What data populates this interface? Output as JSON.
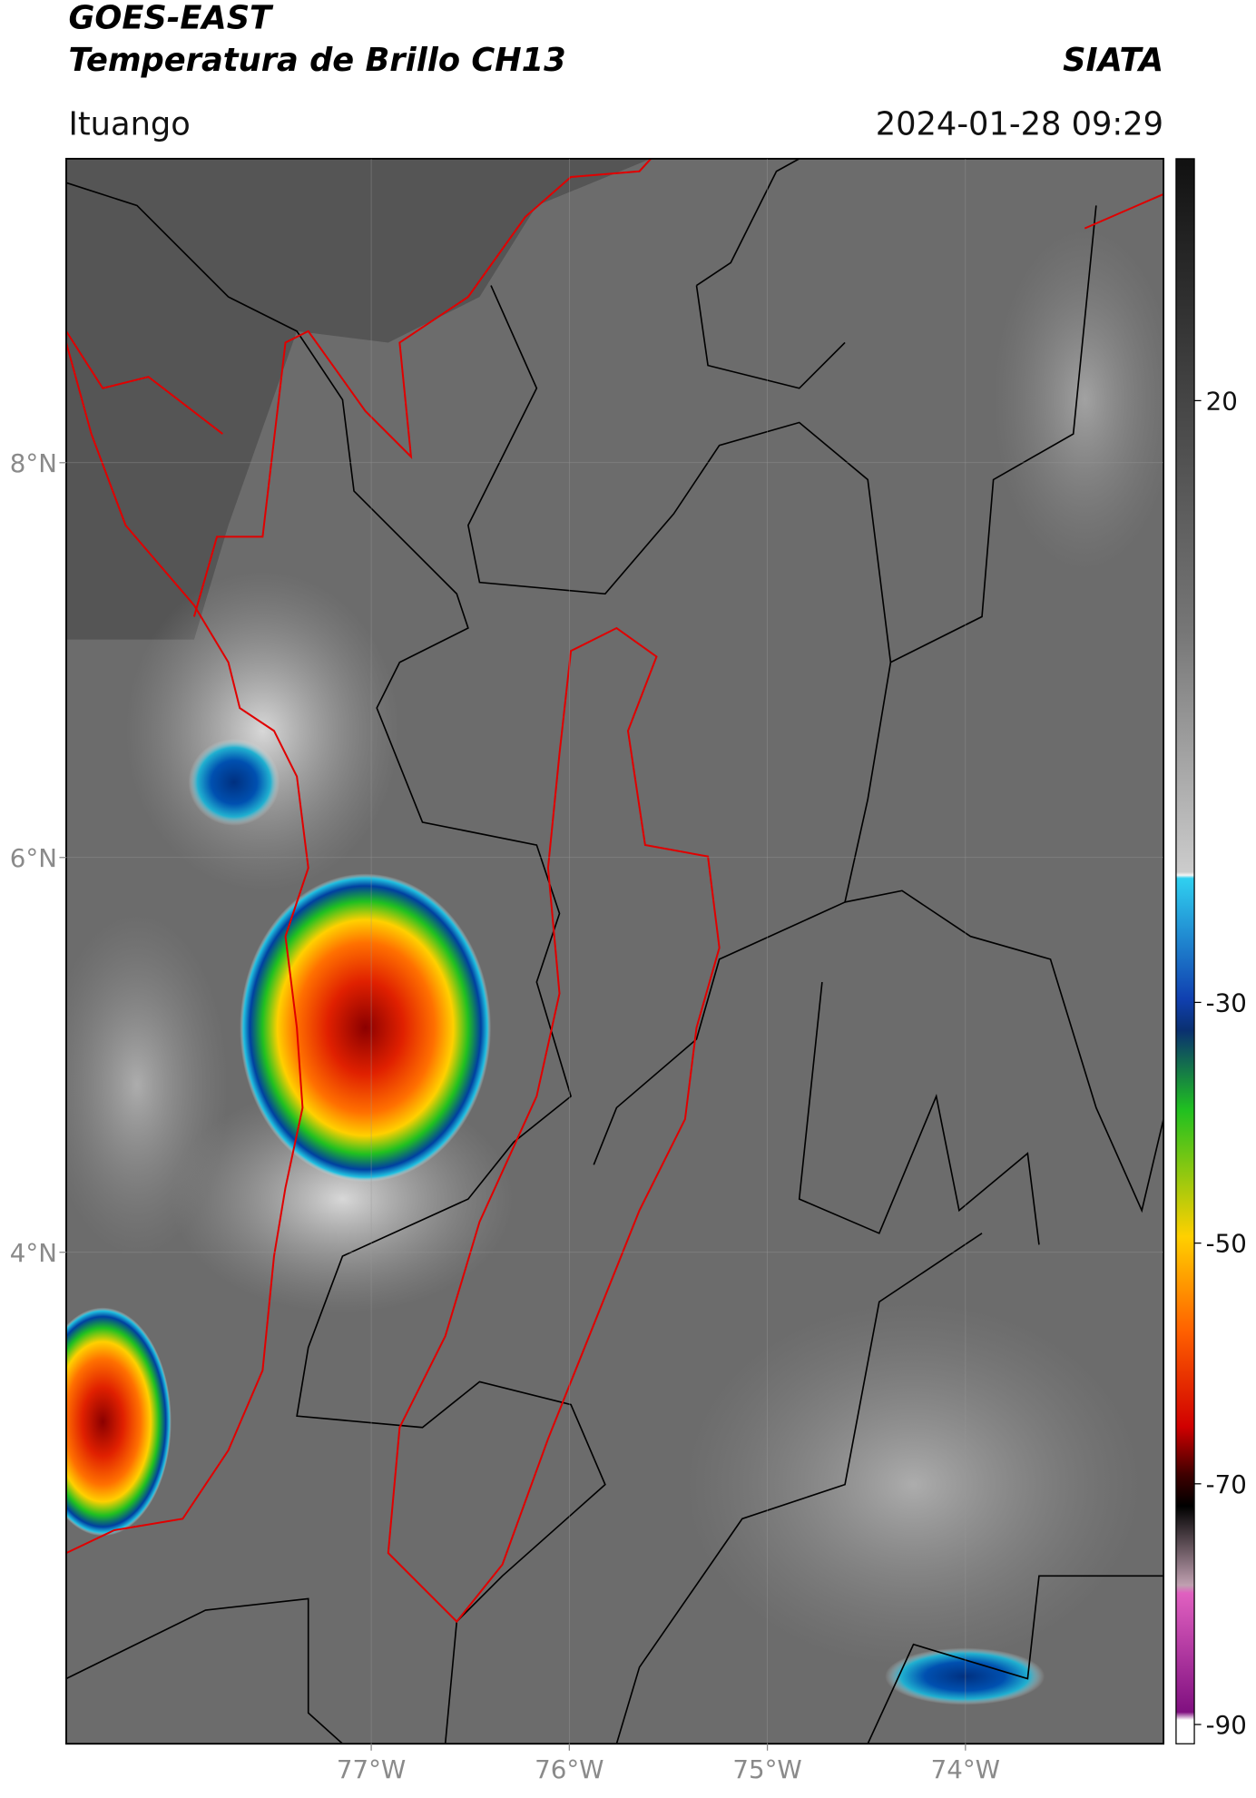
{
  "header": {
    "title": "GOES-EAST",
    "subtitle": "Temperatura de Brillo CH13",
    "source": "SIATA",
    "location": "Ituango",
    "datetime": "2024-01-28 09:29"
  },
  "map": {
    "xlim": [
      -78.54,
      -73.0
    ],
    "ylim": [
      1.51,
      9.54
    ],
    "xticks": [
      {
        "value": -77,
        "label": "77°W"
      },
      {
        "value": -76,
        "label": "76°W"
      },
      {
        "value": -75,
        "label": "75°W"
      },
      {
        "value": -74,
        "label": "74°W"
      }
    ],
    "yticks": [
      {
        "value": 8,
        "label": "8°N"
      },
      {
        "value": 6,
        "label": "6°N"
      },
      {
        "value": 4,
        "label": "4°N"
      }
    ],
    "grid": true
  },
  "colorbar": {
    "lim": [
      -91.6,
      40.1
    ],
    "ticks": [
      20,
      -30,
      -50,
      -70,
      -90
    ]
  }
}
